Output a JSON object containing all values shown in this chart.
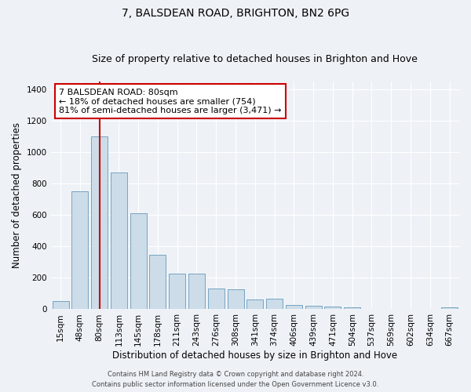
{
  "title": "7, BALSDEAN ROAD, BRIGHTON, BN2 6PG",
  "subtitle": "Size of property relative to detached houses in Brighton and Hove",
  "xlabel": "Distribution of detached houses by size in Brighton and Hove",
  "ylabel": "Number of detached properties",
  "footer1": "Contains HM Land Registry data © Crown copyright and database right 2024.",
  "footer2": "Contains public sector information licensed under the Open Government Licence v3.0.",
  "categories": [
    "15sqm",
    "48sqm",
    "80sqm",
    "113sqm",
    "145sqm",
    "178sqm",
    "211sqm",
    "243sqm",
    "276sqm",
    "308sqm",
    "341sqm",
    "374sqm",
    "406sqm",
    "439sqm",
    "471sqm",
    "504sqm",
    "537sqm",
    "569sqm",
    "602sqm",
    "634sqm",
    "667sqm"
  ],
  "values": [
    52,
    750,
    1100,
    870,
    610,
    345,
    225,
    225,
    130,
    128,
    62,
    68,
    28,
    20,
    15,
    10,
    4,
    0,
    0,
    0,
    10
  ],
  "bar_color": "#ccdce8",
  "bar_edge_color": "#6699bb",
  "highlight_x": "80sqm",
  "highlight_line_color": "#cc0000",
  "annotation_line1": "7 BALSDEAN ROAD: 80sqm",
  "annotation_line2": "← 18% of detached houses are smaller (754)",
  "annotation_line3": "81% of semi-detached houses are larger (3,471) →",
  "annotation_box_color": "#ffffff",
  "annotation_box_edge": "#cc0000",
  "ylim": [
    0,
    1450
  ],
  "yticks": [
    0,
    200,
    400,
    600,
    800,
    1000,
    1200,
    1400
  ],
  "background_color": "#eef2f7",
  "grid_color": "#ffffff",
  "title_fontsize": 10,
  "subtitle_fontsize": 9,
  "xlabel_fontsize": 8.5,
  "ylabel_fontsize": 8.5,
  "tick_fontsize": 7.5,
  "annotation_fontsize": 8,
  "footer_fontsize": 6
}
